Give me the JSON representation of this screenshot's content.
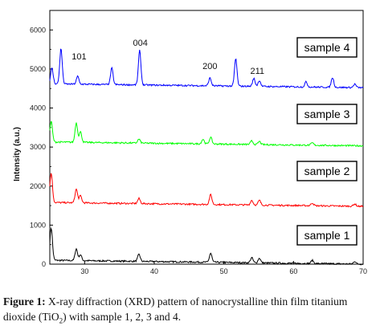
{
  "chart_data": {
    "type": "line",
    "title": "",
    "xlabel": "",
    "ylabel": "Intensity (a.u.)",
    "xlim": [
      25,
      70
    ],
    "ylim": [
      0,
      6500
    ],
    "x_ticks": [
      30,
      40,
      50,
      60,
      70
    ],
    "y_ticks": [
      0,
      1000,
      2000,
      3000,
      4000,
      5000,
      6000
    ],
    "grid": false,
    "legend": "none",
    "series": [
      {
        "name": "sample 1",
        "color": "#000000",
        "baseline": 100,
        "peaks": [
          [
            25.2,
            830
          ],
          [
            28.8,
            300
          ],
          [
            29.4,
            150
          ],
          [
            37.8,
            180
          ],
          [
            48.1,
            230
          ],
          [
            54.0,
            130
          ],
          [
            55.1,
            120
          ],
          [
            62.7,
            80
          ],
          [
            68.8,
            70
          ]
        ]
      },
      {
        "name": "sample 2",
        "color": "#ff0000",
        "baseline": 1580,
        "peaks": [
          [
            25.2,
            760
          ],
          [
            28.8,
            350
          ],
          [
            29.4,
            180
          ],
          [
            37.8,
            130
          ],
          [
            48.1,
            250
          ],
          [
            54.0,
            120
          ],
          [
            55.1,
            120
          ],
          [
            62.7,
            70
          ],
          [
            68.8,
            60
          ]
        ]
      },
      {
        "name": "sample 3",
        "color": "#00ff00",
        "baseline": 3130,
        "peaks": [
          [
            25.2,
            530
          ],
          [
            28.8,
            500
          ],
          [
            29.4,
            270
          ],
          [
            37.8,
            100
          ],
          [
            47.0,
            120
          ],
          [
            48.1,
            170
          ],
          [
            54.0,
            90
          ],
          [
            55.1,
            80
          ],
          [
            62.7,
            60
          ]
        ]
      },
      {
        "name": "sample 4",
        "color": "#0000ff",
        "baseline": 4620,
        "peaks": [
          [
            25.3,
            400
          ],
          [
            26.6,
            900
          ],
          [
            29.0,
            200
          ],
          [
            33.9,
            420
          ],
          [
            37.9,
            880
          ],
          [
            48.0,
            200
          ],
          [
            51.7,
            700
          ],
          [
            54.3,
            200
          ],
          [
            55.1,
            150
          ],
          [
            61.8,
            130
          ],
          [
            65.6,
            250
          ],
          [
            68.8,
            90
          ]
        ]
      }
    ],
    "annotations": [
      {
        "text": "101",
        "x": 29.2,
        "y": 5250
      },
      {
        "text": "004",
        "x": 38.0,
        "y": 5600
      },
      {
        "text": "200",
        "x": 48.0,
        "y": 5000
      },
      {
        "text": "211",
        "x": 54.8,
        "y": 4880
      }
    ],
    "sample_boxes": [
      "sample 4",
      "sample 3",
      "sample 2",
      "sample 1"
    ]
  },
  "caption": {
    "prefix": "Figure 1:",
    "text": "X-ray diffraction (XRD) pattern of nanocrystalline thin film titanium dioxide (TiO",
    "subscript": "2",
    "suffix": ") with sample 1, 2, 3 and 4."
  }
}
